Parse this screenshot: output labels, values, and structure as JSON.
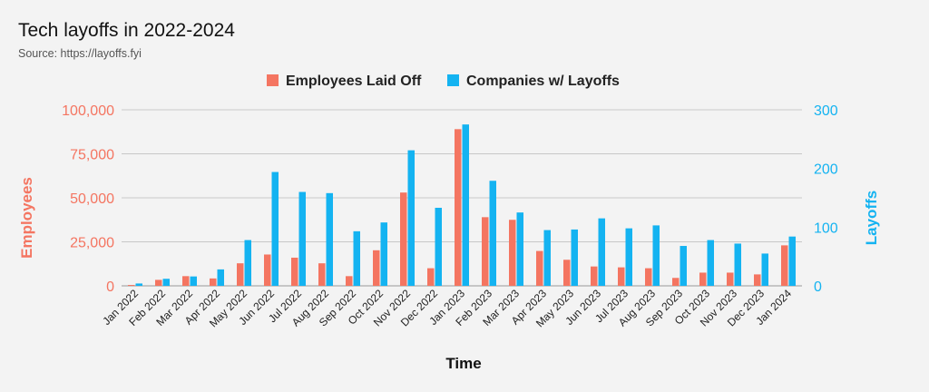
{
  "title": "Tech layoffs in 2022-2024",
  "subtitle": "Source: https://layoffs.fyi",
  "colors": {
    "employees": "#f47561",
    "companies": "#14b3f1",
    "grid": "#c8c8c8"
  },
  "chart_data": {
    "type": "bar",
    "xlabel": "Time",
    "ylabel_left": "Employees",
    "ylabel_right": "Layoffs",
    "ylim_left": [
      0,
      100000
    ],
    "ylim_right": [
      0,
      300
    ],
    "yticks_left": [
      "0",
      "25,000",
      "50,000",
      "75,000",
      "100,000"
    ],
    "yticks_right": [
      "0",
      "100",
      "200",
      "300"
    ],
    "grid": true,
    "legend_position": "top-center",
    "categories": [
      "Jan 2022",
      "Feb 2022",
      "Mar 2022",
      "Apr 2022",
      "May 2022",
      "Jun 2022",
      "Jul 2022",
      "Aug 2022",
      "Sep 2022",
      "Oct 2022",
      "Nov 2022",
      "Dec 2022",
      "Jan 2023",
      "Feb 2023",
      "Mar 2023",
      "Apr 2023",
      "May 2023",
      "Jun 2023",
      "Jul 2023",
      "Aug 2023",
      "Sep 2023",
      "Oct 2023",
      "Nov 2023",
      "Dec 2023",
      "Jan 2024"
    ],
    "series": [
      {
        "name": "Employees Laid Off",
        "axis": "left",
        "values": [
          500,
          3400,
          5500,
          4200,
          12800,
          17800,
          16000,
          12800,
          5500,
          20200,
          53000,
          10000,
          89000,
          39000,
          37500,
          19800,
          14800,
          11000,
          10500,
          10000,
          4500,
          7500,
          7500,
          6500,
          23000
        ]
      },
      {
        "name": "Companies w/ Layoffs",
        "axis": "right",
        "values": [
          4,
          12,
          16,
          28,
          78,
          194,
          160,
          158,
          93,
          108,
          231,
          133,
          275,
          179,
          125,
          95,
          96,
          115,
          98,
          103,
          68,
          78,
          72,
          55,
          84
        ]
      }
    ]
  }
}
